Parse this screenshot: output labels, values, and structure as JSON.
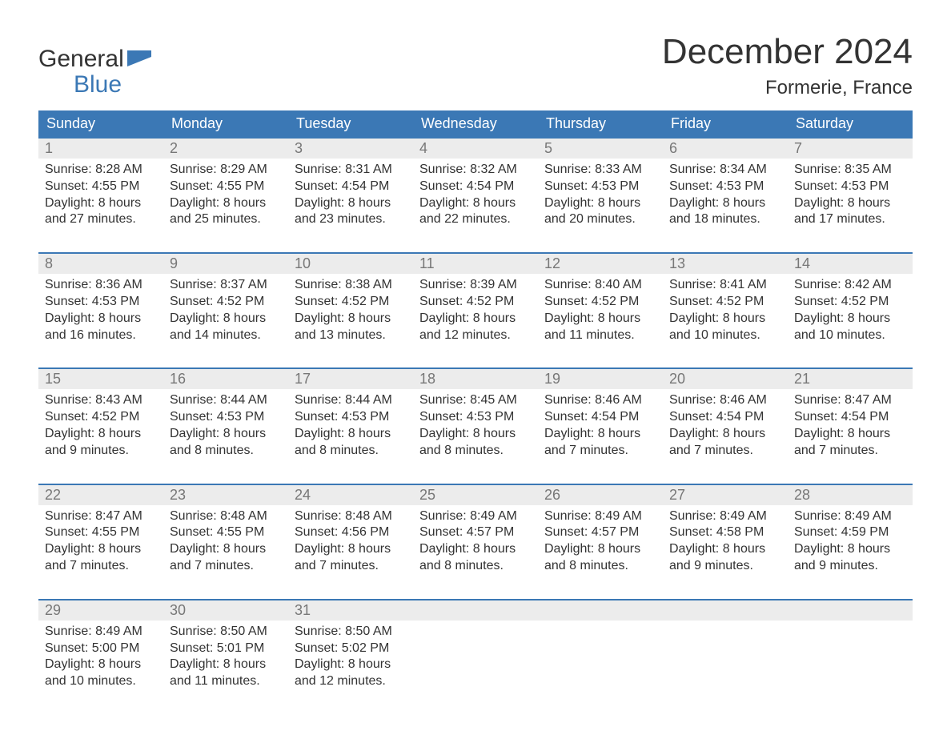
{
  "logo": {
    "line1": "General",
    "line2": "Blue"
  },
  "title": "December 2024",
  "location": "Formerie, France",
  "colors": {
    "header_bg": "#3b78b5",
    "header_text": "#ffffff",
    "daynum_bg": "#ececec",
    "daynum_text": "#777777",
    "body_text": "#333333",
    "logo_blue": "#3b78b5",
    "week_border": "#3b78b5",
    "page_bg": "#ffffff"
  },
  "layout": {
    "columns": 7,
    "weeks": 5,
    "daynum_fontsize": 18,
    "dow_fontsize": 18,
    "cell_fontsize": 16,
    "title_fontsize": 44,
    "location_fontsize": 24
  },
  "days_of_week": [
    "Sunday",
    "Monday",
    "Tuesday",
    "Wednesday",
    "Thursday",
    "Friday",
    "Saturday"
  ],
  "weeks": [
    [
      {
        "n": "1",
        "sunrise": "Sunrise: 8:28 AM",
        "sunset": "Sunset: 4:55 PM",
        "d1": "Daylight: 8 hours",
        "d2": "and 27 minutes."
      },
      {
        "n": "2",
        "sunrise": "Sunrise: 8:29 AM",
        "sunset": "Sunset: 4:55 PM",
        "d1": "Daylight: 8 hours",
        "d2": "and 25 minutes."
      },
      {
        "n": "3",
        "sunrise": "Sunrise: 8:31 AM",
        "sunset": "Sunset: 4:54 PM",
        "d1": "Daylight: 8 hours",
        "d2": "and 23 minutes."
      },
      {
        "n": "4",
        "sunrise": "Sunrise: 8:32 AM",
        "sunset": "Sunset: 4:54 PM",
        "d1": "Daylight: 8 hours",
        "d2": "and 22 minutes."
      },
      {
        "n": "5",
        "sunrise": "Sunrise: 8:33 AM",
        "sunset": "Sunset: 4:53 PM",
        "d1": "Daylight: 8 hours",
        "d2": "and 20 minutes."
      },
      {
        "n": "6",
        "sunrise": "Sunrise: 8:34 AM",
        "sunset": "Sunset: 4:53 PM",
        "d1": "Daylight: 8 hours",
        "d2": "and 18 minutes."
      },
      {
        "n": "7",
        "sunrise": "Sunrise: 8:35 AM",
        "sunset": "Sunset: 4:53 PM",
        "d1": "Daylight: 8 hours",
        "d2": "and 17 minutes."
      }
    ],
    [
      {
        "n": "8",
        "sunrise": "Sunrise: 8:36 AM",
        "sunset": "Sunset: 4:53 PM",
        "d1": "Daylight: 8 hours",
        "d2": "and 16 minutes."
      },
      {
        "n": "9",
        "sunrise": "Sunrise: 8:37 AM",
        "sunset": "Sunset: 4:52 PM",
        "d1": "Daylight: 8 hours",
        "d2": "and 14 minutes."
      },
      {
        "n": "10",
        "sunrise": "Sunrise: 8:38 AM",
        "sunset": "Sunset: 4:52 PM",
        "d1": "Daylight: 8 hours",
        "d2": "and 13 minutes."
      },
      {
        "n": "11",
        "sunrise": "Sunrise: 8:39 AM",
        "sunset": "Sunset: 4:52 PM",
        "d1": "Daylight: 8 hours",
        "d2": "and 12 minutes."
      },
      {
        "n": "12",
        "sunrise": "Sunrise: 8:40 AM",
        "sunset": "Sunset: 4:52 PM",
        "d1": "Daylight: 8 hours",
        "d2": "and 11 minutes."
      },
      {
        "n": "13",
        "sunrise": "Sunrise: 8:41 AM",
        "sunset": "Sunset: 4:52 PM",
        "d1": "Daylight: 8 hours",
        "d2": "and 10 minutes."
      },
      {
        "n": "14",
        "sunrise": "Sunrise: 8:42 AM",
        "sunset": "Sunset: 4:52 PM",
        "d1": "Daylight: 8 hours",
        "d2": "and 10 minutes."
      }
    ],
    [
      {
        "n": "15",
        "sunrise": "Sunrise: 8:43 AM",
        "sunset": "Sunset: 4:52 PM",
        "d1": "Daylight: 8 hours",
        "d2": "and 9 minutes."
      },
      {
        "n": "16",
        "sunrise": "Sunrise: 8:44 AM",
        "sunset": "Sunset: 4:53 PM",
        "d1": "Daylight: 8 hours",
        "d2": "and 8 minutes."
      },
      {
        "n": "17",
        "sunrise": "Sunrise: 8:44 AM",
        "sunset": "Sunset: 4:53 PM",
        "d1": "Daylight: 8 hours",
        "d2": "and 8 minutes."
      },
      {
        "n": "18",
        "sunrise": "Sunrise: 8:45 AM",
        "sunset": "Sunset: 4:53 PM",
        "d1": "Daylight: 8 hours",
        "d2": "and 8 minutes."
      },
      {
        "n": "19",
        "sunrise": "Sunrise: 8:46 AM",
        "sunset": "Sunset: 4:54 PM",
        "d1": "Daylight: 8 hours",
        "d2": "and 7 minutes."
      },
      {
        "n": "20",
        "sunrise": "Sunrise: 8:46 AM",
        "sunset": "Sunset: 4:54 PM",
        "d1": "Daylight: 8 hours",
        "d2": "and 7 minutes."
      },
      {
        "n": "21",
        "sunrise": "Sunrise: 8:47 AM",
        "sunset": "Sunset: 4:54 PM",
        "d1": "Daylight: 8 hours",
        "d2": "and 7 minutes."
      }
    ],
    [
      {
        "n": "22",
        "sunrise": "Sunrise: 8:47 AM",
        "sunset": "Sunset: 4:55 PM",
        "d1": "Daylight: 8 hours",
        "d2": "and 7 minutes."
      },
      {
        "n": "23",
        "sunrise": "Sunrise: 8:48 AM",
        "sunset": "Sunset: 4:55 PM",
        "d1": "Daylight: 8 hours",
        "d2": "and 7 minutes."
      },
      {
        "n": "24",
        "sunrise": "Sunrise: 8:48 AM",
        "sunset": "Sunset: 4:56 PM",
        "d1": "Daylight: 8 hours",
        "d2": "and 7 minutes."
      },
      {
        "n": "25",
        "sunrise": "Sunrise: 8:49 AM",
        "sunset": "Sunset: 4:57 PM",
        "d1": "Daylight: 8 hours",
        "d2": "and 8 minutes."
      },
      {
        "n": "26",
        "sunrise": "Sunrise: 8:49 AM",
        "sunset": "Sunset: 4:57 PM",
        "d1": "Daylight: 8 hours",
        "d2": "and 8 minutes."
      },
      {
        "n": "27",
        "sunrise": "Sunrise: 8:49 AM",
        "sunset": "Sunset: 4:58 PM",
        "d1": "Daylight: 8 hours",
        "d2": "and 9 minutes."
      },
      {
        "n": "28",
        "sunrise": "Sunrise: 8:49 AM",
        "sunset": "Sunset: 4:59 PM",
        "d1": "Daylight: 8 hours",
        "d2": "and 9 minutes."
      }
    ],
    [
      {
        "n": "29",
        "sunrise": "Sunrise: 8:49 AM",
        "sunset": "Sunset: 5:00 PM",
        "d1": "Daylight: 8 hours",
        "d2": "and 10 minutes."
      },
      {
        "n": "30",
        "sunrise": "Sunrise: 8:50 AM",
        "sunset": "Sunset: 5:01 PM",
        "d1": "Daylight: 8 hours",
        "d2": "and 11 minutes."
      },
      {
        "n": "31",
        "sunrise": "Sunrise: 8:50 AM",
        "sunset": "Sunset: 5:02 PM",
        "d1": "Daylight: 8 hours",
        "d2": "and 12 minutes."
      },
      {
        "n": "",
        "sunrise": "",
        "sunset": "",
        "d1": "",
        "d2": ""
      },
      {
        "n": "",
        "sunrise": "",
        "sunset": "",
        "d1": "",
        "d2": ""
      },
      {
        "n": "",
        "sunrise": "",
        "sunset": "",
        "d1": "",
        "d2": ""
      },
      {
        "n": "",
        "sunrise": "",
        "sunset": "",
        "d1": "",
        "d2": ""
      }
    ]
  ]
}
